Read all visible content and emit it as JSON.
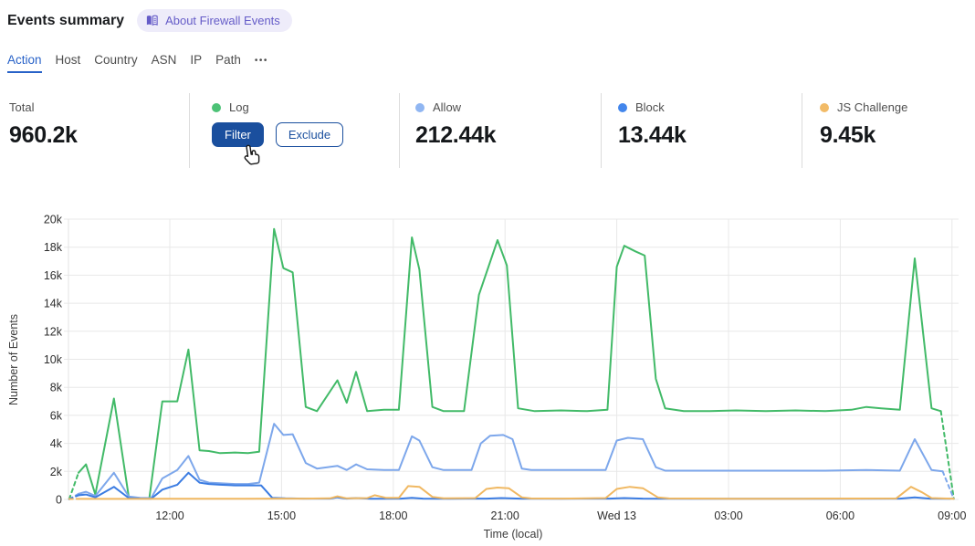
{
  "header": {
    "title": "Events summary",
    "about_badge": "About Firewall Events"
  },
  "tabs": {
    "items": [
      {
        "label": "Action",
        "active": true
      },
      {
        "label": "Host",
        "active": false
      },
      {
        "label": "Country",
        "active": false
      },
      {
        "label": "ASN",
        "active": false
      },
      {
        "label": "IP",
        "active": false
      },
      {
        "label": "Path",
        "active": false
      }
    ],
    "more_label": "•••"
  },
  "stats": {
    "columns": [
      {
        "label": "Total",
        "value": "960.2k"
      },
      {
        "label": "Log",
        "dot": "#4cc276",
        "actions": {
          "filter": "Filter",
          "exclude": "Exclude"
        }
      },
      {
        "label": "Allow",
        "dot": "#90b6f2",
        "value": "212.44k"
      },
      {
        "label": "Block",
        "dot": "#4286ec",
        "value": "13.44k"
      },
      {
        "label": "JS Challenge",
        "dot": "#f2bb67",
        "value": "9.45k"
      }
    ]
  },
  "colors": {
    "accent_blue": "#2862c8",
    "button_blue": "#1a4f9e",
    "badge_bg": "#eeecfa",
    "badge_text": "#655cc8",
    "gridline": "#e8e8e8"
  },
  "chart_data": {
    "type": "line",
    "xlabel": "Time (local)",
    "ylabel": "Number of Events",
    "x_unit": "hours after 09:00 (Tue); 15.0 = Wed 13 00:00",
    "values_unit": "thousands of events",
    "ylim": [
      0,
      20000
    ],
    "grid": true,
    "x_ticks": [
      [
        3,
        "12:00"
      ],
      [
        6,
        "15:00"
      ],
      [
        9,
        "18:00"
      ],
      [
        12,
        "21:00"
      ],
      [
        15,
        "Wed 13"
      ],
      [
        18,
        "03:00"
      ],
      [
        21,
        "06:00"
      ],
      [
        24,
        "09:00"
      ]
    ],
    "y_ticks": [
      [
        0,
        "0"
      ],
      [
        2,
        "2k"
      ],
      [
        4,
        "4k"
      ],
      [
        6,
        "6k"
      ],
      [
        8,
        "8k"
      ],
      [
        10,
        "10k"
      ],
      [
        12,
        "12k"
      ],
      [
        14,
        "14k"
      ],
      [
        16,
        "16k"
      ],
      [
        18,
        "18k"
      ],
      [
        20,
        "20k"
      ]
    ],
    "series": [
      {
        "name": "Log",
        "color": "#42ba68",
        "dashed_head": true,
        "dashed_tail": true,
        "points": [
          [
            0.3,
            0.02
          ],
          [
            0.55,
            1.9
          ],
          [
            0.75,
            2.5
          ],
          [
            1.0,
            0.35
          ],
          [
            1.5,
            7.2
          ],
          [
            1.9,
            0.15
          ],
          [
            2.15,
            0.1
          ],
          [
            2.45,
            0.1
          ],
          [
            2.8,
            7.0
          ],
          [
            3.2,
            7.0
          ],
          [
            3.5,
            10.7
          ],
          [
            3.8,
            3.5
          ],
          [
            4.05,
            3.45
          ],
          [
            4.35,
            3.3
          ],
          [
            4.75,
            3.35
          ],
          [
            5.1,
            3.3
          ],
          [
            5.4,
            3.4
          ],
          [
            5.8,
            19.3
          ],
          [
            6.05,
            16.5
          ],
          [
            6.3,
            16.2
          ],
          [
            6.65,
            6.6
          ],
          [
            6.95,
            6.3
          ],
          [
            7.5,
            8.5
          ],
          [
            7.75,
            6.9
          ],
          [
            8.0,
            9.1
          ],
          [
            8.3,
            6.3
          ],
          [
            8.75,
            6.4
          ],
          [
            9.15,
            6.4
          ],
          [
            9.5,
            18.7
          ],
          [
            9.7,
            16.4
          ],
          [
            10.05,
            6.6
          ],
          [
            10.35,
            6.3
          ],
          [
            10.9,
            6.3
          ],
          [
            11.3,
            14.6
          ],
          [
            11.8,
            18.5
          ],
          [
            12.05,
            16.7
          ],
          [
            12.35,
            6.5
          ],
          [
            12.8,
            6.3
          ],
          [
            13.5,
            6.35
          ],
          [
            14.2,
            6.3
          ],
          [
            14.75,
            6.4
          ],
          [
            15.0,
            16.6
          ],
          [
            15.2,
            18.1
          ],
          [
            15.5,
            17.7
          ],
          [
            15.75,
            17.4
          ],
          [
            16.05,
            8.6
          ],
          [
            16.3,
            6.5
          ],
          [
            16.8,
            6.3
          ],
          [
            17.5,
            6.3
          ],
          [
            18.2,
            6.35
          ],
          [
            19.0,
            6.3
          ],
          [
            19.8,
            6.35
          ],
          [
            20.6,
            6.3
          ],
          [
            21.3,
            6.4
          ],
          [
            21.7,
            6.6
          ],
          [
            22.1,
            6.5
          ],
          [
            22.6,
            6.4
          ],
          [
            23.0,
            17.2
          ],
          [
            23.45,
            6.5
          ],
          [
            23.7,
            6.3
          ],
          [
            24.05,
            0.05
          ]
        ]
      },
      {
        "name": "Allow",
        "color": "#7da7eb",
        "dashed_head": true,
        "dashed_tail": true,
        "points": [
          [
            0.3,
            0.02
          ],
          [
            0.55,
            0.4
          ],
          [
            0.75,
            0.55
          ],
          [
            1.0,
            0.25
          ],
          [
            1.5,
            1.9
          ],
          [
            1.9,
            0.2
          ],
          [
            2.2,
            0.12
          ],
          [
            2.5,
            0.1
          ],
          [
            2.8,
            1.5
          ],
          [
            3.2,
            2.1
          ],
          [
            3.5,
            3.1
          ],
          [
            3.8,
            1.4
          ],
          [
            4.05,
            1.2
          ],
          [
            4.35,
            1.15
          ],
          [
            4.75,
            1.1
          ],
          [
            5.1,
            1.1
          ],
          [
            5.4,
            1.2
          ],
          [
            5.8,
            5.4
          ],
          [
            6.05,
            4.6
          ],
          [
            6.3,
            4.65
          ],
          [
            6.65,
            2.6
          ],
          [
            6.95,
            2.2
          ],
          [
            7.5,
            2.4
          ],
          [
            7.75,
            2.1
          ],
          [
            8.0,
            2.5
          ],
          [
            8.3,
            2.15
          ],
          [
            8.75,
            2.1
          ],
          [
            9.15,
            2.1
          ],
          [
            9.5,
            4.5
          ],
          [
            9.7,
            4.2
          ],
          [
            10.05,
            2.3
          ],
          [
            10.35,
            2.1
          ],
          [
            11.1,
            2.1
          ],
          [
            11.35,
            4.0
          ],
          [
            11.6,
            4.55
          ],
          [
            11.95,
            4.6
          ],
          [
            12.2,
            4.3
          ],
          [
            12.45,
            2.2
          ],
          [
            12.7,
            2.1
          ],
          [
            13.5,
            2.1
          ],
          [
            14.45,
            2.1
          ],
          [
            14.7,
            2.1
          ],
          [
            15.0,
            4.2
          ],
          [
            15.3,
            4.4
          ],
          [
            15.7,
            4.3
          ],
          [
            16.05,
            2.3
          ],
          [
            16.3,
            2.05
          ],
          [
            17.5,
            2.05
          ],
          [
            19.0,
            2.05
          ],
          [
            20.6,
            2.05
          ],
          [
            21.7,
            2.1
          ],
          [
            22.6,
            2.05
          ],
          [
            23.0,
            4.3
          ],
          [
            23.45,
            2.1
          ],
          [
            23.75,
            2.0
          ],
          [
            24.05,
            0.05
          ]
        ]
      },
      {
        "name": "Block",
        "color": "#3b7ce2",
        "dashed_head": true,
        "dashed_tail": false,
        "points": [
          [
            0.3,
            0.02
          ],
          [
            0.55,
            0.3
          ],
          [
            0.75,
            0.35
          ],
          [
            1.0,
            0.15
          ],
          [
            1.5,
            0.9
          ],
          [
            1.9,
            0.1
          ],
          [
            2.2,
            0.06
          ],
          [
            2.5,
            0.05
          ],
          [
            2.8,
            0.7
          ],
          [
            3.2,
            1.05
          ],
          [
            3.5,
            1.9
          ],
          [
            3.8,
            1.2
          ],
          [
            4.05,
            1.1
          ],
          [
            4.35,
            1.05
          ],
          [
            4.75,
            1.0
          ],
          [
            5.1,
            1.0
          ],
          [
            5.45,
            1.0
          ],
          [
            5.75,
            0.12
          ],
          [
            6.1,
            0.08
          ],
          [
            6.6,
            0.06
          ],
          [
            7.3,
            0.06
          ],
          [
            7.5,
            0.15
          ],
          [
            7.75,
            0.06
          ],
          [
            8.0,
            0.1
          ],
          [
            8.4,
            0.05
          ],
          [
            9.2,
            0.06
          ],
          [
            9.5,
            0.12
          ],
          [
            9.8,
            0.06
          ],
          [
            10.5,
            0.05
          ],
          [
            11.5,
            0.06
          ],
          [
            11.9,
            0.1
          ],
          [
            12.4,
            0.06
          ],
          [
            13.5,
            0.05
          ],
          [
            14.8,
            0.06
          ],
          [
            15.2,
            0.1
          ],
          [
            15.7,
            0.06
          ],
          [
            17.0,
            0.05
          ],
          [
            19.0,
            0.05
          ],
          [
            21.0,
            0.05
          ],
          [
            22.6,
            0.06
          ],
          [
            23.0,
            0.15
          ],
          [
            23.4,
            0.06
          ],
          [
            23.95,
            0.05
          ]
        ]
      },
      {
        "name": "JS Challenge",
        "color": "#f0b862",
        "dashed_head": true,
        "dashed_tail": false,
        "points": [
          [
            0.3,
            0.03
          ],
          [
            0.55,
            0.04
          ],
          [
            1.0,
            0.04
          ],
          [
            2.0,
            0.04
          ],
          [
            3.0,
            0.05
          ],
          [
            4.0,
            0.05
          ],
          [
            5.0,
            0.05
          ],
          [
            6.0,
            0.06
          ],
          [
            6.6,
            0.06
          ],
          [
            7.3,
            0.08
          ],
          [
            7.5,
            0.22
          ],
          [
            7.75,
            0.08
          ],
          [
            8.3,
            0.1
          ],
          [
            8.5,
            0.3
          ],
          [
            8.8,
            0.12
          ],
          [
            9.15,
            0.12
          ],
          [
            9.4,
            0.95
          ],
          [
            9.7,
            0.9
          ],
          [
            10.05,
            0.18
          ],
          [
            10.35,
            0.08
          ],
          [
            11.2,
            0.1
          ],
          [
            11.5,
            0.75
          ],
          [
            11.8,
            0.85
          ],
          [
            12.1,
            0.8
          ],
          [
            12.45,
            0.15
          ],
          [
            12.7,
            0.07
          ],
          [
            13.5,
            0.06
          ],
          [
            14.7,
            0.1
          ],
          [
            15.0,
            0.75
          ],
          [
            15.35,
            0.9
          ],
          [
            15.7,
            0.8
          ],
          [
            16.1,
            0.15
          ],
          [
            16.4,
            0.07
          ],
          [
            18.0,
            0.05
          ],
          [
            20.0,
            0.05
          ],
          [
            22.5,
            0.07
          ],
          [
            22.9,
            0.9
          ],
          [
            23.2,
            0.5
          ],
          [
            23.45,
            0.1
          ],
          [
            24.05,
            0.05
          ]
        ]
      }
    ]
  }
}
